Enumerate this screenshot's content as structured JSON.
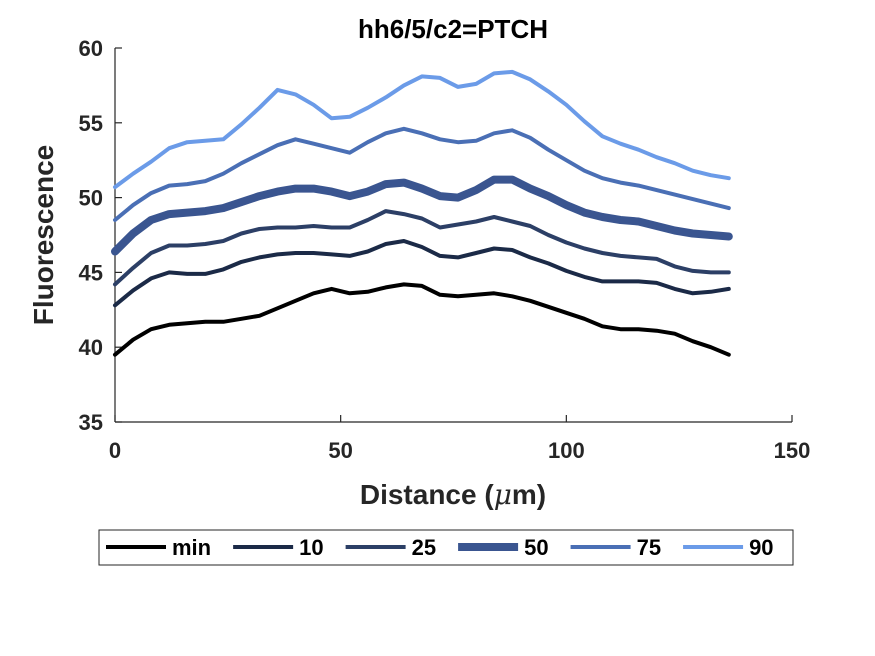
{
  "chart_data": {
    "type": "line",
    "title": "hh6/5/c2=PTCH",
    "xlabel_main": "Distance (",
    "xlabel_mu": "μ",
    "xlabel_end": "m)",
    "ylabel": "Fluorescence",
    "xlim": [
      0,
      150
    ],
    "ylim": [
      35,
      60
    ],
    "x_ticks": [
      "0",
      "50",
      "100",
      "150"
    ],
    "y_ticks": [
      "35",
      "40",
      "45",
      "50",
      "55",
      "60"
    ],
    "grid": false,
    "legend_position": "bottom-outside",
    "x": [
      0,
      4,
      8,
      12,
      16,
      20,
      24,
      28,
      32,
      36,
      40,
      44,
      48,
      52,
      56,
      60,
      64,
      68,
      72,
      76,
      80,
      84,
      88,
      92,
      96,
      100,
      104,
      108,
      112,
      116,
      120,
      124,
      128,
      132,
      136
    ],
    "series": [
      {
        "name": "min",
        "color": "#000000",
        "width": 4,
        "values": [
          39.5,
          40.5,
          41.2,
          41.5,
          41.6,
          41.7,
          41.7,
          41.9,
          42.1,
          42.6,
          43.1,
          43.6,
          43.9,
          43.6,
          43.7,
          44.0,
          44.2,
          44.1,
          43.5,
          43.4,
          43.5,
          43.6,
          43.4,
          43.1,
          42.7,
          42.3,
          41.9,
          41.4,
          41.2,
          41.2,
          41.1,
          40.9,
          40.4,
          40.0,
          39.5
        ]
      },
      {
        "name": "10",
        "color": "#1b2a47",
        "width": 4,
        "values": [
          42.8,
          43.8,
          44.6,
          45.0,
          44.9,
          44.9,
          45.2,
          45.7,
          46.0,
          46.2,
          46.3,
          46.3,
          46.2,
          46.1,
          46.4,
          46.9,
          47.1,
          46.7,
          46.1,
          46.0,
          46.3,
          46.6,
          46.5,
          46.0,
          45.6,
          45.1,
          44.7,
          44.4,
          44.4,
          44.4,
          44.3,
          43.9,
          43.6,
          43.7,
          43.9
        ]
      },
      {
        "name": "25",
        "color": "#2c3f66",
        "width": 4,
        "values": [
          44.2,
          45.3,
          46.3,
          46.8,
          46.8,
          46.9,
          47.1,
          47.6,
          47.9,
          48.0,
          48.0,
          48.1,
          48.0,
          48.0,
          48.5,
          49.1,
          48.9,
          48.6,
          48.0,
          48.2,
          48.4,
          48.7,
          48.4,
          48.1,
          47.5,
          47.0,
          46.6,
          46.3,
          46.1,
          46.0,
          45.9,
          45.4,
          45.1,
          45.0,
          45.0
        ]
      },
      {
        "name": "50",
        "color": "#3a5590",
        "width": 8,
        "values": [
          46.4,
          47.6,
          48.5,
          48.9,
          49.0,
          49.1,
          49.3,
          49.7,
          50.1,
          50.4,
          50.6,
          50.6,
          50.4,
          50.1,
          50.4,
          50.9,
          51.0,
          50.6,
          50.1,
          50.0,
          50.5,
          51.2,
          51.2,
          50.6,
          50.1,
          49.5,
          49.0,
          48.7,
          48.5,
          48.4,
          48.1,
          47.8,
          47.6,
          47.5,
          47.4
        ]
      },
      {
        "name": "75",
        "color": "#4a6fb5",
        "width": 4,
        "values": [
          48.5,
          49.5,
          50.3,
          50.8,
          50.9,
          51.1,
          51.6,
          52.3,
          52.9,
          53.5,
          53.9,
          53.6,
          53.3,
          53.0,
          53.7,
          54.3,
          54.6,
          54.3,
          53.9,
          53.7,
          53.8,
          54.3,
          54.5,
          54.0,
          53.2,
          52.5,
          51.8,
          51.3,
          51.0,
          50.8,
          50.5,
          50.2,
          49.9,
          49.6,
          49.3
        ]
      },
      {
        "name": "90",
        "color": "#6b9be8",
        "width": 4,
        "values": [
          50.7,
          51.6,
          52.4,
          53.3,
          53.7,
          53.8,
          53.9,
          54.9,
          56.0,
          57.2,
          56.9,
          56.2,
          55.3,
          55.4,
          56.0,
          56.7,
          57.5,
          58.1,
          58.0,
          57.4,
          57.6,
          58.3,
          58.4,
          57.9,
          57.1,
          56.2,
          55.1,
          54.1,
          53.6,
          53.2,
          52.7,
          52.3,
          51.8,
          51.5,
          51.3
        ]
      }
    ]
  }
}
